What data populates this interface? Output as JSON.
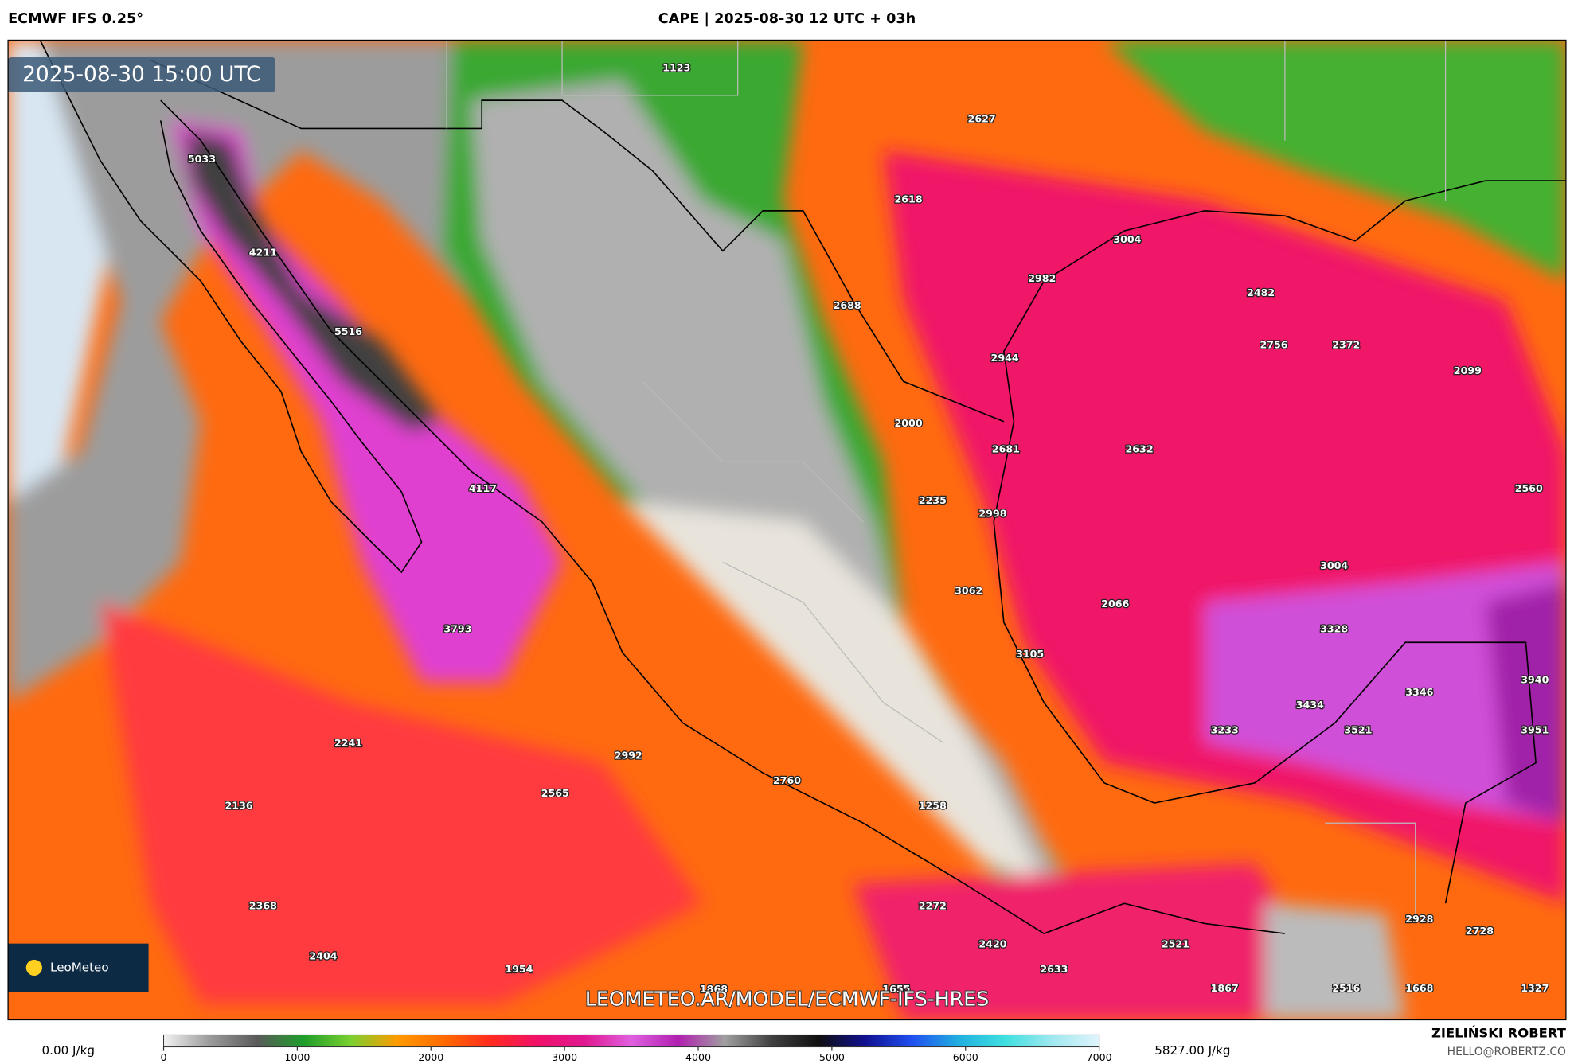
{
  "header": {
    "model": "ECMWF IFS 0.25°",
    "title": "CAPE | 2025-08-30 12 UTC + 03h",
    "valid_time": "2025-08-30 15:00 UTC"
  },
  "map_labels": [
    1123,
    2627,
    5033,
    2618,
    4211,
    3004,
    2982,
    2482,
    2688,
    5516,
    2944,
    2756,
    2372,
    2099,
    2000,
    2681,
    2632,
    4117,
    2235,
    2998,
    2560,
    3004,
    3062,
    2066,
    3793,
    3328,
    3105,
    3346,
    3940,
    3434,
    3233,
    3521,
    3951,
    2241,
    2992,
    2760,
    2565,
    2136,
    1258,
    2368,
    2272,
    2928,
    2728,
    2420,
    2521,
    2404,
    1954,
    2633,
    1868,
    1655,
    1867,
    2516,
    1668,
    1327
  ],
  "watermark": "LEOMETEO.AR/MODEL/ECMWF-IFS-HRES",
  "logo": "LeoMeteo",
  "colorbar": {
    "range": [
      0,
      7000
    ],
    "ticks": [
      0,
      1000,
      2000,
      3000,
      4000,
      5000,
      6000,
      7000
    ],
    "colors": [
      "#f2f2f2",
      "#9a9a9a",
      "#5a5a5a",
      "#1e9e2a",
      "#7ad030",
      "#ff9a00",
      "#ff6a00",
      "#ff2a20",
      "#f0106a",
      "#e01890",
      "#e060e0",
      "#b020b0",
      "#a0a0a0",
      "#404040",
      "#101010",
      "#101090",
      "#2050f0",
      "#20b0e0",
      "#40e0e0",
      "#a0e8f0",
      "#e0f4fc"
    ],
    "min_label": "0.00 J/kg",
    "max_label": "5827.00 J/kg"
  },
  "credit": {
    "author": "ZIELIŃSKI ROBERT",
    "email": "HELLO@ROBERTZ.CO"
  }
}
